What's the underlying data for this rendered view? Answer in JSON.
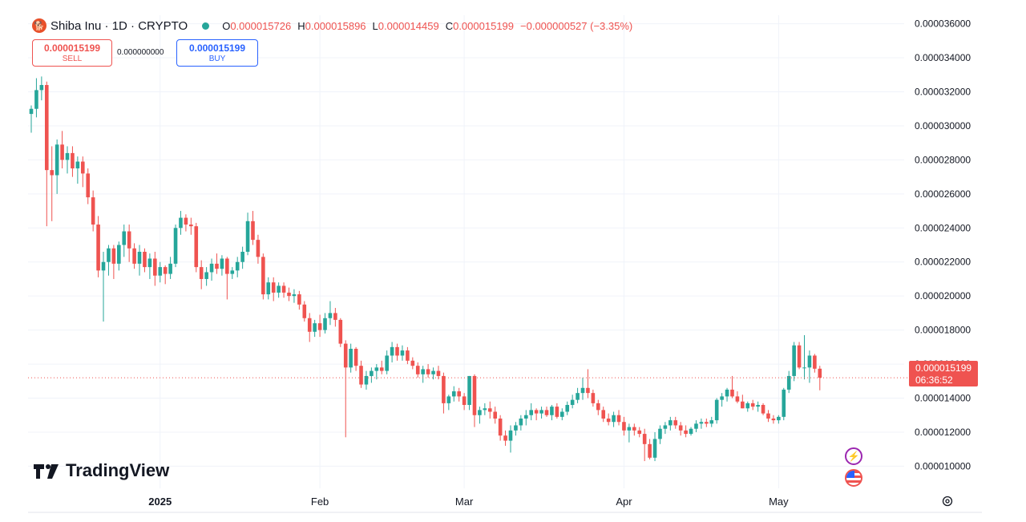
{
  "header": {
    "coin_glyph": "🐕",
    "symbol": "Shiba Inu · 1D · CRYPTO",
    "open_label": "O",
    "open": "0.000015726",
    "high_label": "H",
    "high": "0.000015896",
    "low_label": "L",
    "low": "0.000014459",
    "close_label": "C",
    "close": "0.000015199",
    "change": "−0.000000527 (−3.35%)"
  },
  "trade": {
    "sell_price": "0.000015199",
    "sell_label": "SELL",
    "spread": "0.000000000",
    "buy_price": "0.000015199",
    "buy_label": "BUY"
  },
  "brand": {
    "name": "TradingView"
  },
  "price_tag": {
    "price": "0.000015199",
    "countdown": "06:36:52"
  },
  "icons": {
    "flash": "lightning-icon",
    "flag": "us-flag-icon",
    "settings": "gear-icon"
  },
  "colors": {
    "up": "#26a69a",
    "down": "#ef5350",
    "grid": "#f0f3fa",
    "axis_text": "#131722"
  },
  "chart_data": {
    "type": "candlestick",
    "interval": "1D",
    "y_ticks": [
      "0.000036000",
      "0.000034000",
      "0.000032000",
      "0.000030000",
      "0.000028000",
      "0.000026000",
      "0.000024000",
      "0.000022000",
      "0.000020000",
      "0.000018000",
      "0.000016000",
      "0.000014000",
      "0.000012000",
      "0.000010000"
    ],
    "ylim": [
      8.7e-06,
      3.65e-05
    ],
    "x_labels": [
      "2025",
      "Feb",
      "Mar",
      "Apr",
      "May"
    ],
    "x_label_dates": [
      "2025-01-01",
      "2025-02-01",
      "2025-03-01",
      "2025-04-01",
      "2025-05-01"
    ],
    "last_price": 1.5199e-05,
    "candles": [
      {
        "o": 3.07e-05,
        "h": 3.12e-05,
        "l": 2.96e-05,
        "c": 3.1e-05
      },
      {
        "o": 3.1e-05,
        "h": 3.28e-05,
        "l": 3.05e-05,
        "c": 3.21e-05
      },
      {
        "o": 3.21e-05,
        "h": 3.29e-05,
        "l": 3.15e-05,
        "c": 3.24e-05
      },
      {
        "o": 3.24e-05,
        "h": 3.26e-05,
        "l": 2.41e-05,
        "c": 2.74e-05
      },
      {
        "o": 2.74e-05,
        "h": 2.88e-05,
        "l": 2.44e-05,
        "c": 2.71e-05
      },
      {
        "o": 2.71e-05,
        "h": 2.92e-05,
        "l": 2.6e-05,
        "c": 2.89e-05
      },
      {
        "o": 2.89e-05,
        "h": 2.97e-05,
        "l": 2.75e-05,
        "c": 2.8e-05
      },
      {
        "o": 2.8e-05,
        "h": 2.88e-05,
        "l": 2.72e-05,
        "c": 2.84e-05
      },
      {
        "o": 2.84e-05,
        "h": 2.88e-05,
        "l": 2.7e-05,
        "c": 2.75e-05
      },
      {
        "o": 2.75e-05,
        "h": 2.82e-05,
        "l": 2.66e-05,
        "c": 2.79e-05
      },
      {
        "o": 2.79e-05,
        "h": 2.82e-05,
        "l": 2.64e-05,
        "c": 2.72e-05
      },
      {
        "o": 2.72e-05,
        "h": 2.75e-05,
        "l": 2.54e-05,
        "c": 2.58e-05
      },
      {
        "o": 2.58e-05,
        "h": 2.62e-05,
        "l": 2.38e-05,
        "c": 2.42e-05
      },
      {
        "o": 2.42e-05,
        "h": 2.47e-05,
        "l": 2.11e-05,
        "c": 2.15e-05
      },
      {
        "o": 2.15e-05,
        "h": 2.26e-05,
        "l": 1.85e-05,
        "c": 2.2e-05
      },
      {
        "o": 2.2e-05,
        "h": 2.3e-05,
        "l": 2.12e-05,
        "c": 2.28e-05
      },
      {
        "o": 2.28e-05,
        "h": 2.3e-05,
        "l": 2.1e-05,
        "c": 2.19e-05
      },
      {
        "o": 2.19e-05,
        "h": 2.32e-05,
        "l": 2.15e-05,
        "c": 2.3e-05
      },
      {
        "o": 2.3e-05,
        "h": 2.42e-05,
        "l": 2.23e-05,
        "c": 2.38e-05
      },
      {
        "o": 2.38e-05,
        "h": 2.42e-05,
        "l": 2.2e-05,
        "c": 2.28e-05
      },
      {
        "o": 2.28e-05,
        "h": 2.31e-05,
        "l": 2.16e-05,
        "c": 2.19e-05
      },
      {
        "o": 2.19e-05,
        "h": 2.3e-05,
        "l": 2.12e-05,
        "c": 2.26e-05
      },
      {
        "o": 2.26e-05,
        "h": 2.28e-05,
        "l": 2.14e-05,
        "c": 2.17e-05
      },
      {
        "o": 2.17e-05,
        "h": 2.25e-05,
        "l": 2.1e-05,
        "c": 2.22e-05
      },
      {
        "o": 2.22e-05,
        "h": 2.26e-05,
        "l": 2.06e-05,
        "c": 2.12e-05
      },
      {
        "o": 2.12e-05,
        "h": 2.2e-05,
        "l": 2.08e-05,
        "c": 2.17e-05
      },
      {
        "o": 2.17e-05,
        "h": 2.18e-05,
        "l": 2.07e-05,
        "c": 2.13e-05
      },
      {
        "o": 2.13e-05,
        "h": 2.23e-05,
        "l": 2.1e-05,
        "c": 2.19e-05
      },
      {
        "o": 2.19e-05,
        "h": 2.42e-05,
        "l": 2.17e-05,
        "c": 2.4e-05
      },
      {
        "o": 2.4e-05,
        "h": 2.5e-05,
        "l": 2.36e-05,
        "c": 2.46e-05
      },
      {
        "o": 2.46e-05,
        "h": 2.48e-05,
        "l": 2.38e-05,
        "c": 2.42e-05
      },
      {
        "o": 2.42e-05,
        "h": 2.46e-05,
        "l": 2.36e-05,
        "c": 2.41e-05
      },
      {
        "o": 2.41e-05,
        "h": 2.43e-05,
        "l": 2.14e-05,
        "c": 2.17e-05
      },
      {
        "o": 2.17e-05,
        "h": 2.21e-05,
        "l": 2.04e-05,
        "c": 2.1e-05
      },
      {
        "o": 2.1e-05,
        "h": 2.17e-05,
        "l": 2.06e-05,
        "c": 2.14e-05
      },
      {
        "o": 2.14e-05,
        "h": 2.22e-05,
        "l": 2.09e-05,
        "c": 2.19e-05
      },
      {
        "o": 2.19e-05,
        "h": 2.25e-05,
        "l": 2.13e-05,
        "c": 2.16e-05
      },
      {
        "o": 2.16e-05,
        "h": 2.24e-05,
        "l": 2.12e-05,
        "c": 2.22e-05
      },
      {
        "o": 2.22e-05,
        "h": 2.23e-05,
        "l": 1.98e-05,
        "c": 2.13e-05
      },
      {
        "o": 2.13e-05,
        "h": 2.17e-05,
        "l": 2.1e-05,
        "c": 2.15e-05
      },
      {
        "o": 2.15e-05,
        "h": 2.23e-05,
        "l": 2.11e-05,
        "c": 2.2e-05
      },
      {
        "o": 2.2e-05,
        "h": 2.29e-05,
        "l": 2.16e-05,
        "c": 2.26e-05
      },
      {
        "o": 2.26e-05,
        "h": 2.49e-05,
        "l": 2.24e-05,
        "c": 2.44e-05
      },
      {
        "o": 2.44e-05,
        "h": 2.5e-05,
        "l": 2.3e-05,
        "c": 2.33e-05
      },
      {
        "o": 2.33e-05,
        "h": 2.36e-05,
        "l": 2.19e-05,
        "c": 2.23e-05
      },
      {
        "o": 2.23e-05,
        "h": 2.25e-05,
        "l": 1.98e-05,
        "c": 2.01e-05
      },
      {
        "o": 2.01e-05,
        "h": 2.11e-05,
        "l": 1.98e-05,
        "c": 2.08e-05
      },
      {
        "o": 2.08e-05,
        "h": 2.11e-05,
        "l": 1.97e-05,
        "c": 2.02e-05
      },
      {
        "o": 2.02e-05,
        "h": 2.08e-05,
        "l": 1.99e-05,
        "c": 2.06e-05
      },
      {
        "o": 2.06e-05,
        "h": 2.08e-05,
        "l": 1.99e-05,
        "c": 2.02e-05
      },
      {
        "o": 2.02e-05,
        "h": 2.05e-05,
        "l": 1.97e-05,
        "c": 2e-05
      },
      {
        "o": 2e-05,
        "h": 2.04e-05,
        "l": 1.96e-05,
        "c": 2.01e-05
      },
      {
        "o": 2.01e-05,
        "h": 2.03e-05,
        "l": 1.92e-05,
        "c": 1.95e-05
      },
      {
        "o": 1.95e-05,
        "h": 1.97e-05,
        "l": 1.85e-05,
        "c": 1.87e-05
      },
      {
        "o": 1.87e-05,
        "h": 1.9e-05,
        "l": 1.73e-05,
        "c": 1.79e-05
      },
      {
        "o": 1.79e-05,
        "h": 1.86e-05,
        "l": 1.76e-05,
        "c": 1.84e-05
      },
      {
        "o": 1.84e-05,
        "h": 1.89e-05,
        "l": 1.76e-05,
        "c": 1.8e-05
      },
      {
        "o": 1.8e-05,
        "h": 1.9e-05,
        "l": 1.78e-05,
        "c": 1.87e-05
      },
      {
        "o": 1.87e-05,
        "h": 1.97e-05,
        "l": 1.83e-05,
        "c": 1.9e-05
      },
      {
        "o": 1.9e-05,
        "h": 1.93e-05,
        "l": 1.82e-05,
        "c": 1.86e-05
      },
      {
        "o": 1.86e-05,
        "h": 1.87e-05,
        "l": 1.7e-05,
        "c": 1.72e-05
      },
      {
        "o": 1.72e-05,
        "h": 1.74e-05,
        "l": 1.17e-05,
        "c": 1.58e-05
      },
      {
        "o": 1.58e-05,
        "h": 1.72e-05,
        "l": 1.55e-05,
        "c": 1.69e-05
      },
      {
        "o": 1.69e-05,
        "h": 1.7e-05,
        "l": 1.56e-05,
        "c": 1.59e-05
      },
      {
        "o": 1.59e-05,
        "h": 1.62e-05,
        "l": 1.46e-05,
        "c": 1.48e-05
      },
      {
        "o": 1.48e-05,
        "h": 1.56e-05,
        "l": 1.45e-05,
        "c": 1.53e-05
      },
      {
        "o": 1.53e-05,
        "h": 1.58e-05,
        "l": 1.49e-05,
        "c": 1.56e-05
      },
      {
        "o": 1.56e-05,
        "h": 1.6e-05,
        "l": 1.51e-05,
        "c": 1.58e-05
      },
      {
        "o": 1.58e-05,
        "h": 1.62e-05,
        "l": 1.54e-05,
        "c": 1.56e-05
      },
      {
        "o": 1.56e-05,
        "h": 1.68e-05,
        "l": 1.54e-05,
        "c": 1.65e-05
      },
      {
        "o": 1.65e-05,
        "h": 1.73e-05,
        "l": 1.61e-05,
        "c": 1.7e-05
      },
      {
        "o": 1.7e-05,
        "h": 1.72e-05,
        "l": 1.62e-05,
        "c": 1.65e-05
      },
      {
        "o": 1.65e-05,
        "h": 1.71e-05,
        "l": 1.62e-05,
        "c": 1.68e-05
      },
      {
        "o": 1.68e-05,
        "h": 1.7e-05,
        "l": 1.6e-05,
        "c": 1.62e-05
      },
      {
        "o": 1.62e-05,
        "h": 1.64e-05,
        "l": 1.57e-05,
        "c": 1.59e-05
      },
      {
        "o": 1.59e-05,
        "h": 1.61e-05,
        "l": 1.52e-05,
        "c": 1.54e-05
      },
      {
        "o": 1.54e-05,
        "h": 1.59e-05,
        "l": 1.49e-05,
        "c": 1.57e-05
      },
      {
        "o": 1.57e-05,
        "h": 1.6e-05,
        "l": 1.52e-05,
        "c": 1.54e-05
      },
      {
        "o": 1.54e-05,
        "h": 1.58e-05,
        "l": 1.51e-05,
        "c": 1.56e-05
      },
      {
        "o": 1.56e-05,
        "h": 1.59e-05,
        "l": 1.51e-05,
        "c": 1.53e-05
      },
      {
        "o": 1.53e-05,
        "h": 1.55e-05,
        "l": 1.31e-05,
        "c": 1.37e-05
      },
      {
        "o": 1.37e-05,
        "h": 1.42e-05,
        "l": 1.33e-05,
        "c": 1.41e-05
      },
      {
        "o": 1.41e-05,
        "h": 1.47e-05,
        "l": 1.38e-05,
        "c": 1.44e-05
      },
      {
        "o": 1.44e-05,
        "h": 1.46e-05,
        "l": 1.38e-05,
        "c": 1.41e-05
      },
      {
        "o": 1.41e-05,
        "h": 1.43e-05,
        "l": 1.33e-05,
        "c": 1.36e-05
      },
      {
        "o": 1.36e-05,
        "h": 1.53e-05,
        "l": 1.33e-05,
        "c": 1.53e-05
      },
      {
        "o": 1.53e-05,
        "h": 1.54e-05,
        "l": 1.23e-05,
        "c": 1.3e-05
      },
      {
        "o": 1.3e-05,
        "h": 1.35e-05,
        "l": 1.25e-05,
        "c": 1.33e-05
      },
      {
        "o": 1.33e-05,
        "h": 1.37e-05,
        "l": 1.3e-05,
        "c": 1.34e-05
      },
      {
        "o": 1.34e-05,
        "h": 1.38e-05,
        "l": 1.28e-05,
        "c": 1.32e-05
      },
      {
        "o": 1.32e-05,
        "h": 1.35e-05,
        "l": 1.25e-05,
        "c": 1.28e-05
      },
      {
        "o": 1.28e-05,
        "h": 1.3e-05,
        "l": 1.15e-05,
        "c": 1.18e-05
      },
      {
        "o": 1.18e-05,
        "h": 1.21e-05,
        "l": 1.12e-05,
        "c": 1.15e-05
      },
      {
        "o": 1.15e-05,
        "h": 1.24e-05,
        "l": 1.08e-05,
        "c": 1.21e-05
      },
      {
        "o": 1.21e-05,
        "h": 1.26e-05,
        "l": 1.18e-05,
        "c": 1.24e-05
      },
      {
        "o": 1.24e-05,
        "h": 1.3e-05,
        "l": 1.21e-05,
        "c": 1.28e-05
      },
      {
        "o": 1.28e-05,
        "h": 1.33e-05,
        "l": 1.24e-05,
        "c": 1.3e-05
      },
      {
        "o": 1.3e-05,
        "h": 1.37e-05,
        "l": 1.27e-05,
        "c": 1.33e-05
      },
      {
        "o": 1.33e-05,
        "h": 1.34e-05,
        "l": 1.27e-05,
        "c": 1.31e-05
      },
      {
        "o": 1.31e-05,
        "h": 1.35e-05,
        "l": 1.28e-05,
        "c": 1.33e-05
      },
      {
        "o": 1.33e-05,
        "h": 1.35e-05,
        "l": 1.29e-05,
        "c": 1.3e-05
      },
      {
        "o": 1.3e-05,
        "h": 1.36e-05,
        "l": 1.27e-05,
        "c": 1.35e-05
      },
      {
        "o": 1.35e-05,
        "h": 1.37e-05,
        "l": 1.28e-05,
        "c": 1.29e-05
      },
      {
        "o": 1.29e-05,
        "h": 1.34e-05,
        "l": 1.27e-05,
        "c": 1.32e-05
      },
      {
        "o": 1.32e-05,
        "h": 1.38e-05,
        "l": 1.3e-05,
        "c": 1.36e-05
      },
      {
        "o": 1.36e-05,
        "h": 1.42e-05,
        "l": 1.34e-05,
        "c": 1.39e-05
      },
      {
        "o": 1.39e-05,
        "h": 1.46e-05,
        "l": 1.37e-05,
        "c": 1.43e-05
      },
      {
        "o": 1.43e-05,
        "h": 1.52e-05,
        "l": 1.39e-05,
        "c": 1.46e-05
      },
      {
        "o": 1.46e-05,
        "h": 1.57e-05,
        "l": 1.4e-05,
        "c": 1.43e-05
      },
      {
        "o": 1.43e-05,
        "h": 1.45e-05,
        "l": 1.35e-05,
        "c": 1.37e-05
      },
      {
        "o": 1.37e-05,
        "h": 1.39e-05,
        "l": 1.3e-05,
        "c": 1.33e-05
      },
      {
        "o": 1.33e-05,
        "h": 1.35e-05,
        "l": 1.26e-05,
        "c": 1.28e-05
      },
      {
        "o": 1.28e-05,
        "h": 1.31e-05,
        "l": 1.24e-05,
        "c": 1.26e-05
      },
      {
        "o": 1.26e-05,
        "h": 1.32e-05,
        "l": 1.23e-05,
        "c": 1.3e-05
      },
      {
        "o": 1.3e-05,
        "h": 1.33e-05,
        "l": 1.24e-05,
        "c": 1.26e-05
      },
      {
        "o": 1.26e-05,
        "h": 1.29e-05,
        "l": 1.18e-05,
        "c": 1.21e-05
      },
      {
        "o": 1.21e-05,
        "h": 1.25e-05,
        "l": 1.14e-05,
        "c": 1.23e-05
      },
      {
        "o": 1.23e-05,
        "h": 1.25e-05,
        "l": 1.18e-05,
        "c": 1.21e-05
      },
      {
        "o": 1.21e-05,
        "h": 1.23e-05,
        "l": 1.17e-05,
        "c": 1.19e-05
      },
      {
        "o": 1.19e-05,
        "h": 1.22e-05,
        "l": 1.03e-05,
        "c": 1.13e-05
      },
      {
        "o": 1.13e-05,
        "h": 1.16e-05,
        "l": 1.04e-05,
        "c": 1.05e-05
      },
      {
        "o": 1.05e-05,
        "h": 1.2e-05,
        "l": 1.03e-05,
        "c": 1.16e-05
      },
      {
        "o": 1.16e-05,
        "h": 1.24e-05,
        "l": 1.13e-05,
        "c": 1.22e-05
      },
      {
        "o": 1.22e-05,
        "h": 1.26e-05,
        "l": 1.19e-05,
        "c": 1.24e-05
      },
      {
        "o": 1.24e-05,
        "h": 1.29e-05,
        "l": 1.21e-05,
        "c": 1.27e-05
      },
      {
        "o": 1.27e-05,
        "h": 1.29e-05,
        "l": 1.22e-05,
        "c": 1.24e-05
      },
      {
        "o": 1.24e-05,
        "h": 1.26e-05,
        "l": 1.18e-05,
        "c": 1.21e-05
      },
      {
        "o": 1.21e-05,
        "h": 1.24e-05,
        "l": 1.17e-05,
        "c": 1.19e-05
      },
      {
        "o": 1.19e-05,
        "h": 1.23e-05,
        "l": 1.18e-05,
        "c": 1.22e-05
      },
      {
        "o": 1.22e-05,
        "h": 1.27e-05,
        "l": 1.2e-05,
        "c": 1.25e-05
      },
      {
        "o": 1.25e-05,
        "h": 1.28e-05,
        "l": 1.22e-05,
        "c": 1.26e-05
      },
      {
        "o": 1.26e-05,
        "h": 1.28e-05,
        "l": 1.23e-05,
        "c": 1.25e-05
      },
      {
        "o": 1.25e-05,
        "h": 1.29e-05,
        "l": 1.23e-05,
        "c": 1.27e-05
      },
      {
        "o": 1.27e-05,
        "h": 1.4e-05,
        "l": 1.25e-05,
        "c": 1.39e-05
      },
      {
        "o": 1.39e-05,
        "h": 1.43e-05,
        "l": 1.35e-05,
        "c": 1.41e-05
      },
      {
        "o": 1.41e-05,
        "h": 1.46e-05,
        "l": 1.38e-05,
        "c": 1.45e-05
      },
      {
        "o": 1.45e-05,
        "h": 1.53e-05,
        "l": 1.4e-05,
        "c": 1.41e-05
      },
      {
        "o": 1.41e-05,
        "h": 1.44e-05,
        "l": 1.37e-05,
        "c": 1.38e-05
      },
      {
        "o": 1.38e-05,
        "h": 1.42e-05,
        "l": 1.34e-05,
        "c": 1.34e-05
      },
      {
        "o": 1.34e-05,
        "h": 1.38e-05,
        "l": 1.32e-05,
        "c": 1.37e-05
      },
      {
        "o": 1.37e-05,
        "h": 1.39e-05,
        "l": 1.33e-05,
        "c": 1.35e-05
      },
      {
        "o": 1.35e-05,
        "h": 1.38e-05,
        "l": 1.32e-05,
        "c": 1.36e-05
      },
      {
        "o": 1.36e-05,
        "h": 1.37e-05,
        "l": 1.3e-05,
        "c": 1.31e-05
      },
      {
        "o": 1.31e-05,
        "h": 1.33e-05,
        "l": 1.26e-05,
        "c": 1.28e-05
      },
      {
        "o": 1.28e-05,
        "h": 1.3e-05,
        "l": 1.25e-05,
        "c": 1.27e-05
      },
      {
        "o": 1.27e-05,
        "h": 1.3e-05,
        "l": 1.25e-05,
        "c": 1.29e-05
      },
      {
        "o": 1.29e-05,
        "h": 1.46e-05,
        "l": 1.27e-05,
        "c": 1.45e-05
      },
      {
        "o": 1.45e-05,
        "h": 1.56e-05,
        "l": 1.43e-05,
        "c": 1.53e-05
      },
      {
        "o": 1.53e-05,
        "h": 1.73e-05,
        "l": 1.5e-05,
        "c": 1.71e-05
      },
      {
        "o": 1.71e-05,
        "h": 1.73e-05,
        "l": 1.57e-05,
        "c": 1.58e-05
      },
      {
        "o": 1.58e-05,
        "h": 1.77e-05,
        "l": 1.51e-05,
        "c": 1.58e-05
      },
      {
        "o": 1.58e-05,
        "h": 1.68e-05,
        "l": 1.49e-05,
        "c": 1.65e-05
      },
      {
        "o": 1.65e-05,
        "h": 1.66e-05,
        "l": 1.55e-05,
        "c": 1.573e-05
      },
      {
        "o": 1.573e-05,
        "h": 1.59e-05,
        "l": 1.446e-05,
        "c": 1.52e-05
      }
    ]
  }
}
